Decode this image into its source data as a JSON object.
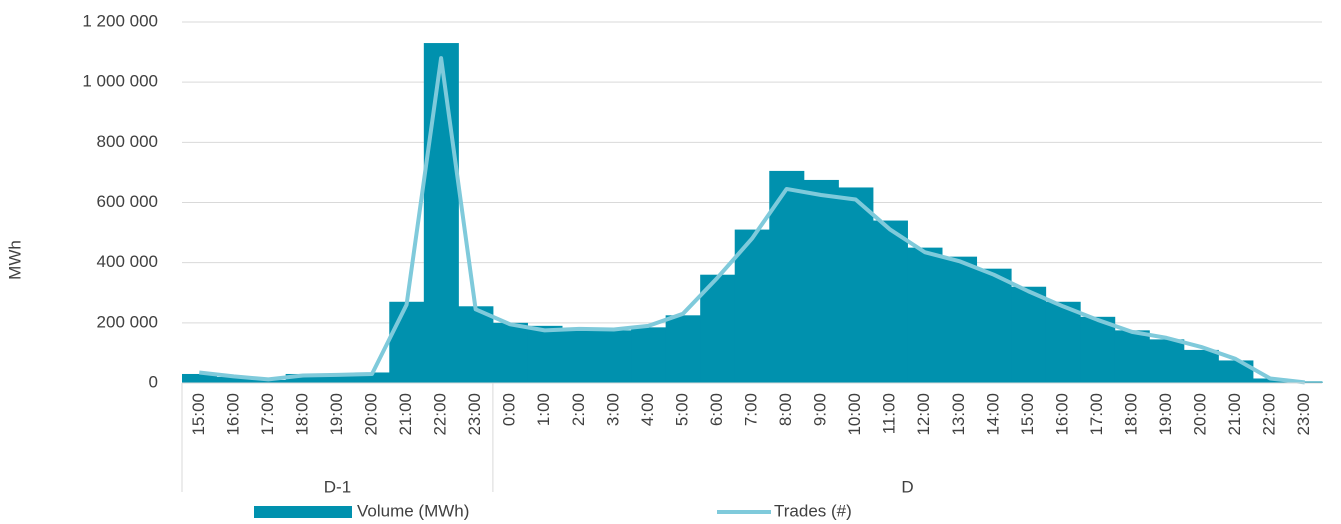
{
  "chart_data": {
    "type": "bar_line",
    "y_label": "MWh",
    "groups": [
      {
        "label": "D-1",
        "categories": [
          "15:00",
          "16:00",
          "17:00",
          "18:00",
          "19:00",
          "20:00",
          "21:00",
          "22:00",
          "23:00"
        ]
      },
      {
        "label": "D",
        "categories": [
          "0:00",
          "1:00",
          "2:00",
          "3:00",
          "4:00",
          "5:00",
          "6:00",
          "7:00",
          "8:00",
          "9:00",
          "10:00",
          "11:00",
          "12:00",
          "13:00",
          "14:00",
          "15:00",
          "16:00",
          "17:00",
          "18:00",
          "19:00",
          "20:00",
          "21:00",
          "22:00",
          "23:00"
        ]
      }
    ],
    "series": [
      {
        "name": "Volume (MWh)",
        "type": "bar",
        "color": "#0091ae",
        "values": [
          30000,
          20000,
          10000,
          30000,
          30000,
          35000,
          270000,
          1130000,
          255000,
          200000,
          190000,
          180000,
          175000,
          185000,
          225000,
          360000,
          510000,
          705000,
          675000,
          650000,
          540000,
          450000,
          420000,
          380000,
          320000,
          270000,
          220000,
          175000,
          145000,
          110000,
          75000,
          15000,
          5000
        ]
      },
      {
        "name": "Trades (#)",
        "type": "line",
        "color": "#7fcadb",
        "values": [
          35000,
          22000,
          12000,
          25000,
          27000,
          30000,
          260000,
          1080000,
          245000,
          195000,
          175000,
          180000,
          178000,
          190000,
          230000,
          350000,
          480000,
          645000,
          625000,
          610000,
          510000,
          435000,
          405000,
          360000,
          305000,
          255000,
          210000,
          170000,
          150000,
          120000,
          80000,
          15000,
          2000
        ]
      }
    ],
    "ylim": [
      0,
      1200000
    ],
    "yticks": [
      0,
      {
        "value": 200000,
        "label": "200 000"
      },
      {
        "value": 400000,
        "label": "400 000"
      },
      {
        "value": 600000,
        "label": "600 000"
      },
      {
        "value": 800000,
        "label": "800 000"
      },
      {
        "value": 1000000,
        "label": "1 000 000"
      },
      {
        "value": 1200000,
        "label": "1 200 000"
      }
    ],
    "grid": true
  }
}
